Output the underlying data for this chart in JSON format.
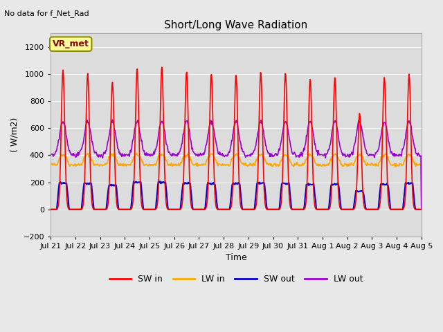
{
  "title": "Short/Long Wave Radiation",
  "xlabel": "Time",
  "ylabel": "( W/m2)",
  "ylim": [
    -200,
    1300
  ],
  "yticks": [
    -200,
    0,
    200,
    400,
    600,
    800,
    1000,
    1200
  ],
  "num_days": 15,
  "x_tick_labels": [
    "Jul 21",
    "Jul 22",
    "Jul 23",
    "Jul 24",
    "Jul 25",
    "Jul 26",
    "Jul 27",
    "Jul 28",
    "Jul 29",
    "Jul 30",
    "Jul 31",
    "Aug 1",
    "Aug 2",
    "Aug 3",
    "Aug 4",
    "Aug 5"
  ],
  "top_left_text": "No data for f_Net_Rad",
  "annotation_box": "VR_met",
  "colors": {
    "SW_in": "#FF0000",
    "LW_in": "#FFA500",
    "SW_out": "#0000CC",
    "LW_out": "#9900CC"
  },
  "legend_labels": [
    "SW in",
    "LW in",
    "SW out",
    "LW out"
  ],
  "bg_color": "#E8E8E8",
  "plot_bg_color": "#DCDCDC",
  "SW_in_peaks": [
    1030,
    1005,
    940,
    1040,
    1055,
    1020,
    1005,
    1000,
    1020,
    1010,
    965,
    975,
    710,
    975,
    1000
  ],
  "LW_in_base": 330,
  "LW_in_bump": 75,
  "SW_out_peak": 195,
  "LW_out_base": 400,
  "LW_out_bump": 250
}
